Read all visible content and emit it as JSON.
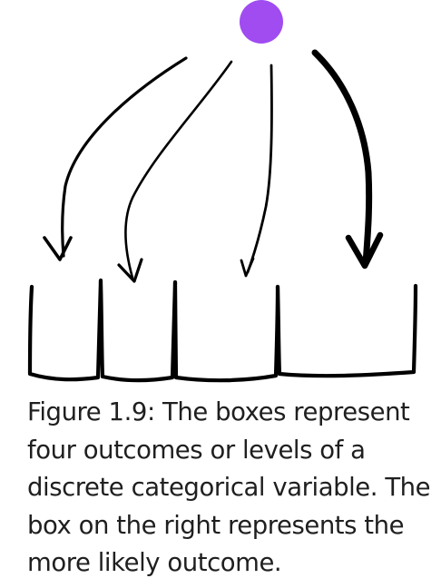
{
  "diagram": {
    "source_node_color": "#a04cf0",
    "stroke_color": "#000000",
    "outcome_count": 4,
    "likely_outcome": "right box"
  },
  "caption": {
    "part1": "Figure 1.9: The boxes represent four outcomes or levels of a discrete ",
    "emphasis": "categorical",
    "part2": " variable. The box on the right represents the more likely outcome."
  }
}
